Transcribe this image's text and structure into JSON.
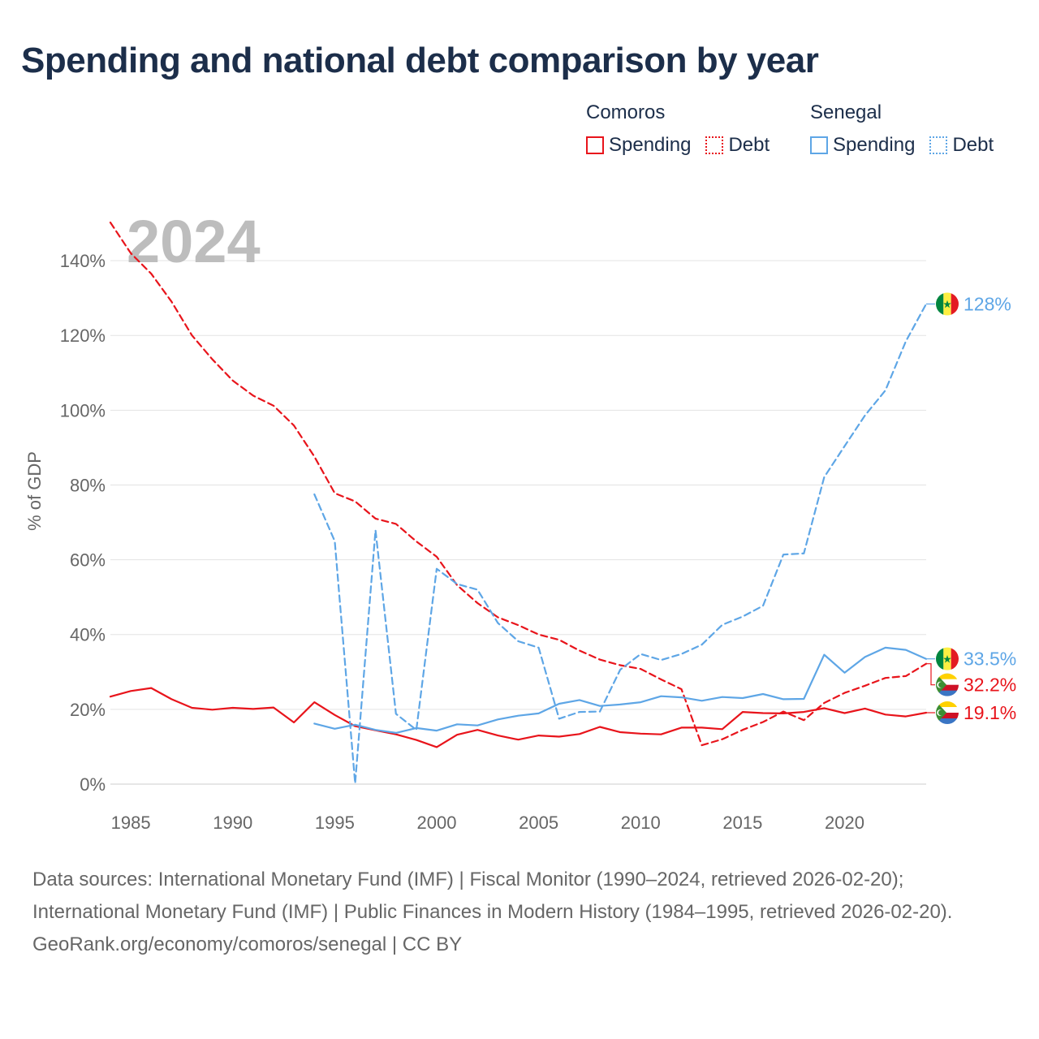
{
  "header": {
    "title": "Spending and national debt comparison by year"
  },
  "legend": {
    "groups": [
      {
        "country": "Comoros",
        "color": "#e8141b",
        "items": [
          {
            "label": "Spending",
            "style": "solid"
          },
          {
            "label": "Debt",
            "style": "dotted"
          }
        ]
      },
      {
        "country": "Senegal",
        "color": "#5ea6e6",
        "items": [
          {
            "label": "Spending",
            "style": "solid"
          },
          {
            "label": "Debt",
            "style": "dotted"
          }
        ]
      }
    ]
  },
  "chart_data": {
    "type": "line",
    "year_watermark": "2024",
    "ylabel": "% of GDP",
    "xlim": [
      1984,
      2024
    ],
    "ylim": [
      0,
      150
    ],
    "x_ticks": [
      1985,
      1990,
      1995,
      2000,
      2005,
      2010,
      2015,
      2020
    ],
    "y_ticks": [
      0,
      20,
      40,
      60,
      80,
      100,
      120,
      140
    ],
    "y_tick_labels": [
      "0%",
      "20%",
      "40%",
      "60%",
      "80%",
      "100%",
      "120%",
      "140%"
    ],
    "series": [
      {
        "name": "Comoros Spending",
        "country": "Comoros",
        "color": "#e8141b",
        "dash": "solid",
        "x": [
          1984,
          1985,
          1986,
          1987,
          1988,
          1989,
          1990,
          1991,
          1992,
          1993,
          1994,
          1995,
          1996,
          1997,
          1998,
          1999,
          2000,
          2001,
          2002,
          2003,
          2004,
          2005,
          2006,
          2007,
          2008,
          2009,
          2010,
          2011,
          2012,
          2013,
          2014,
          2015,
          2016,
          2017,
          2018,
          2019,
          2020,
          2021,
          2022,
          2023,
          2024
        ],
        "y": [
          23.4,
          24.9,
          25.7,
          22.7,
          20.4,
          19.9,
          20.4,
          20.1,
          20.5,
          16.5,
          21.9,
          18.5,
          15.5,
          14.4,
          13.3,
          11.8,
          9.9,
          13.2,
          14.5,
          13.0,
          11.9,
          13.0,
          12.7,
          13.4,
          15.3,
          13.9,
          13.5,
          13.3,
          15.1,
          15.1,
          14.7,
          19.3,
          19.0,
          18.9,
          19.3,
          20.3,
          19.0,
          20.2,
          18.6,
          18.1,
          19.1
        ],
        "end_label": "19.1%"
      },
      {
        "name": "Comoros Debt",
        "country": "Comoros",
        "color": "#e8141b",
        "dash": "dashed",
        "x": [
          1984,
          1985,
          1986,
          1987,
          1988,
          1989,
          1990,
          1991,
          1992,
          1993,
          1994,
          1995,
          1996,
          1997,
          1998,
          1999,
          2000,
          2001,
          2002,
          2003,
          2004,
          2005,
          2006,
          2007,
          2008,
          2009,
          2010,
          2011,
          2012,
          2013,
          2014,
          2015,
          2016,
          2017,
          2018,
          2019,
          2020,
          2021,
          2022,
          2023,
          2024
        ],
        "y": [
          150.2,
          142.0,
          136.5,
          129.0,
          120.0,
          113.6,
          107.9,
          103.9,
          101.2,
          95.9,
          87.6,
          77.8,
          75.6,
          71.0,
          69.6,
          64.9,
          60.8,
          53.2,
          48.4,
          44.6,
          42.5,
          40.0,
          38.6,
          35.7,
          33.3,
          31.8,
          30.8,
          28.0,
          25.4,
          10.4,
          12.0,
          14.5,
          16.6,
          19.4,
          17.1,
          21.7,
          24.4,
          26.3,
          28.4,
          28.9,
          32.2
        ],
        "end_label": "32.2%"
      },
      {
        "name": "Senegal Spending",
        "country": "Senegal",
        "color": "#5ea6e6",
        "dash": "solid",
        "x": [
          1994,
          1995,
          1996,
          1997,
          1998,
          1999,
          2000,
          2001,
          2002,
          2003,
          2004,
          2005,
          2006,
          2007,
          2008,
          2009,
          2010,
          2011,
          2012,
          2013,
          2014,
          2015,
          2016,
          2017,
          2018,
          2019,
          2020,
          2021,
          2022,
          2023,
          2024
        ],
        "y": [
          16.2,
          14.8,
          15.9,
          14.5,
          13.7,
          15.0,
          14.3,
          16.0,
          15.7,
          17.3,
          18.3,
          18.9,
          21.5,
          22.5,
          20.9,
          21.3,
          21.9,
          23.5,
          23.2,
          22.3,
          23.3,
          23.0,
          24.1,
          22.7,
          22.8,
          34.6,
          29.8,
          34.0,
          36.5,
          35.9,
          33.5
        ],
        "end_label": "33.5%"
      },
      {
        "name": "Senegal Debt",
        "country": "Senegal",
        "color": "#5ea6e6",
        "dash": "dashed",
        "x": [
          1994,
          1995,
          1996,
          1997,
          1998,
          1999,
          2000,
          2001,
          2002,
          2003,
          2004,
          2005,
          2006,
          2007,
          2008,
          2009,
          2010,
          2011,
          2012,
          2013,
          2014,
          2015,
          2016,
          2017,
          2018,
          2019,
          2020,
          2021,
          2022,
          2023,
          2024
        ],
        "y": [
          77.5,
          65.0,
          0.2,
          67.9,
          18.8,
          14.5,
          57.6,
          53.5,
          52.0,
          43.1,
          38.2,
          36.5,
          17.5,
          19.3,
          19.4,
          30.6,
          34.8,
          33.2,
          34.8,
          37.3,
          42.6,
          44.8,
          47.7,
          61.4,
          61.7,
          82.1,
          90.4,
          98.6,
          105.3,
          118.4,
          128.4
        ],
        "end_label": "128%"
      }
    ],
    "end_markers": [
      {
        "label": "128%",
        "country": "Senegal",
        "value": 128.4,
        "color": "#5ea6e6"
      },
      {
        "label": "33.5%",
        "country": "Senegal",
        "value": 33.5,
        "color": "#5ea6e6"
      },
      {
        "label": "32.2%",
        "country": "Comoros",
        "value": 32.2,
        "color": "#e8141b"
      },
      {
        "label": "19.1%",
        "country": "Comoros",
        "value": 19.1,
        "color": "#e8141b"
      }
    ]
  },
  "footer": {
    "sources_line1": "Data sources: International Monetary Fund (IMF) | Fiscal Monitor (1990–2024, retrieved 2026-02-20); International Monetary Fund (IMF) | Public Finances in Modern History (1984–1995, retrieved 2026-02-20).",
    "credit": "GeoRank.org/economy/comoros/senegal | CC BY"
  }
}
